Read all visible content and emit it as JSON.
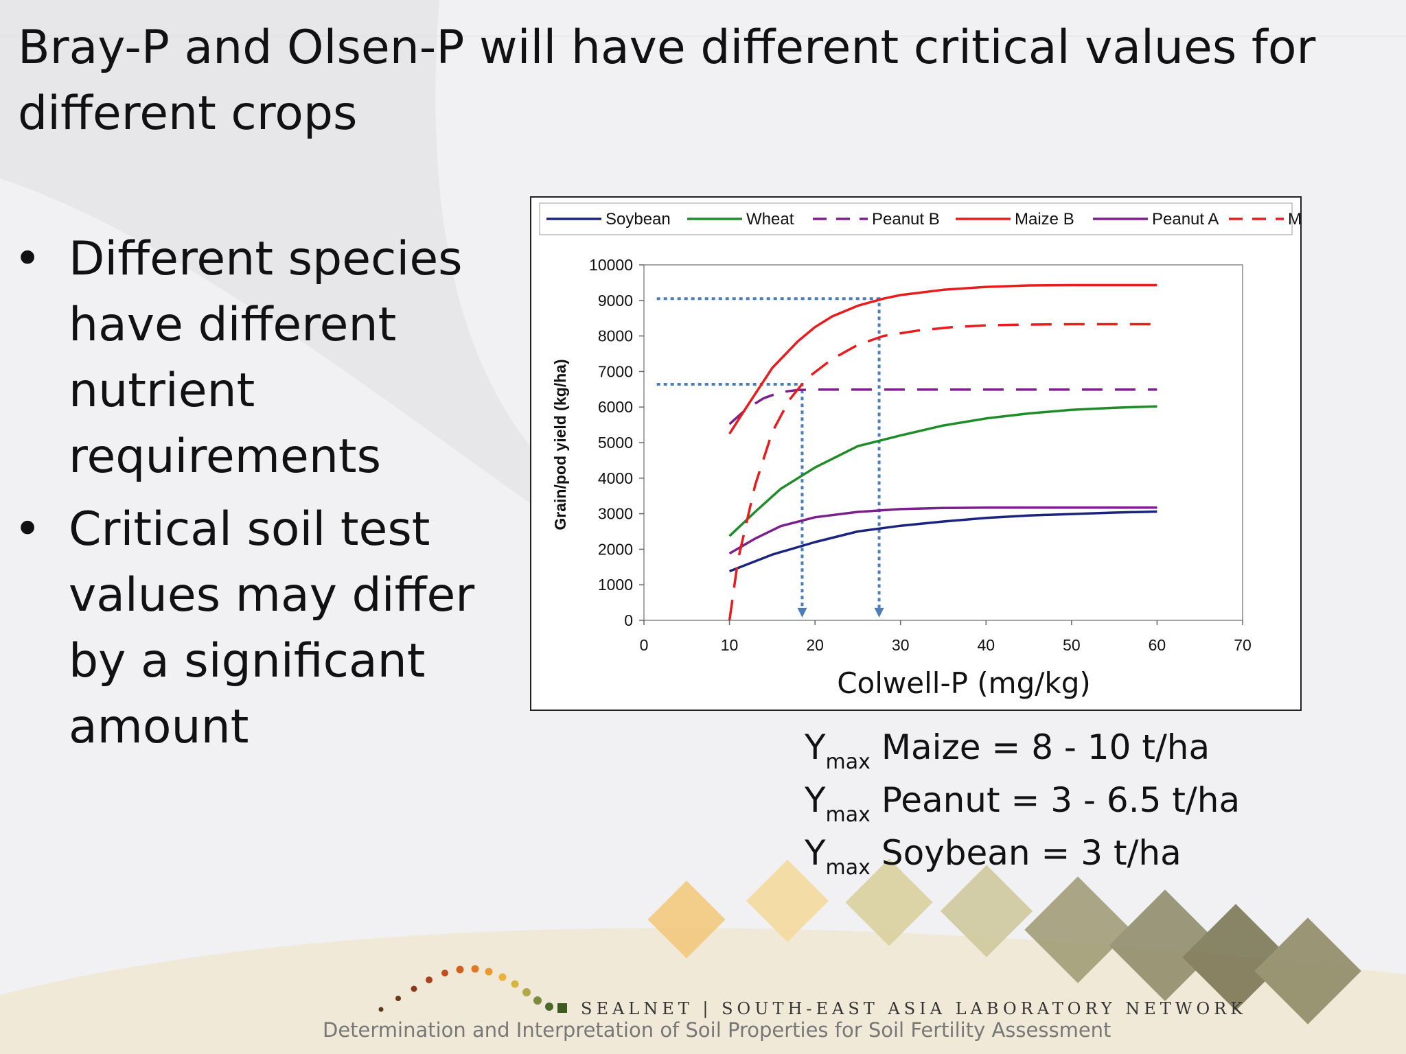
{
  "slide": {
    "title": "Bray-P and Olsen-P will have different critical values for different crops",
    "bullets": [
      "Different species have different nutrient requirements",
      "Critical soil test values may differ by a significant amount"
    ],
    "bullet_symbol": "•"
  },
  "ymax": [
    {
      "sym": "Y",
      "sub": "max",
      "text": "Maize = 8 - 10 t/ha"
    },
    {
      "sym": "Y",
      "sub": "max",
      "text": "Peanut = 3 - 6.5 t/ha"
    },
    {
      "sym": "Y",
      "sub": "max",
      "text": "Soybean = 3 t/ha"
    }
  ],
  "footer": {
    "network": "SEALNET | SOUTH-EAST ASIA LABORATORY NETWORK",
    "subtitle": "Determination and Interpretation of Soil Properties for Soil Fertility Assessment"
  },
  "colors": {
    "soybean": "#1a237e",
    "wheat": "#1e8c28",
    "peanut": "#7a1f8c",
    "maize": "#e81c1c",
    "guide": "#4a7ebb"
  },
  "chart_data": {
    "type": "line",
    "title": "",
    "xlabel": "Colwell-P (mg/kg)",
    "ylabel": "Grain/pod yield (kg/ha)",
    "xlim": [
      0,
      70
    ],
    "ylim": [
      0,
      10000
    ],
    "xticks": [
      0,
      10,
      20,
      30,
      40,
      50,
      60,
      70
    ],
    "yticks": [
      0,
      1000,
      2000,
      3000,
      4000,
      5000,
      6000,
      7000,
      8000,
      9000,
      10000
    ],
    "legend_position": "top",
    "series": [
      {
        "name": "Soybean",
        "style": "solid",
        "color_key": "soybean",
        "x": [
          10,
          15,
          20,
          25,
          30,
          35,
          40,
          45,
          50,
          55,
          60
        ],
        "y": [
          1380,
          1850,
          2200,
          2500,
          2660,
          2780,
          2880,
          2950,
          2990,
          3030,
          3060
        ]
      },
      {
        "name": "Wheat",
        "style": "solid",
        "color_key": "wheat",
        "x": [
          10,
          13,
          16,
          20,
          25,
          30,
          35,
          40,
          45,
          50,
          55,
          60
        ],
        "y": [
          2370,
          3050,
          3700,
          4300,
          4900,
          5200,
          5480,
          5680,
          5820,
          5920,
          5980,
          6020
        ]
      },
      {
        "name": "Peanut B",
        "style": "dashed",
        "color_key": "peanut",
        "x": [
          10,
          12,
          14,
          16,
          18,
          20,
          30,
          40,
          50,
          60
        ],
        "y": [
          5520,
          5950,
          6250,
          6420,
          6480,
          6490,
          6490,
          6490,
          6490,
          6490
        ]
      },
      {
        "name": "Maize B",
        "style": "solid",
        "color_key": "maize",
        "x": [
          10,
          12,
          15,
          18,
          20,
          22,
          25,
          28,
          30,
          35,
          40,
          45,
          50,
          60
        ],
        "y": [
          5250,
          6000,
          7100,
          7850,
          8250,
          8550,
          8850,
          9050,
          9150,
          9300,
          9380,
          9420,
          9430,
          9430
        ]
      },
      {
        "name": "Peanut A",
        "style": "solid",
        "color_key": "peanut",
        "x": [
          10,
          13,
          16,
          20,
          25,
          30,
          35,
          40,
          50,
          60
        ],
        "y": [
          1880,
          2300,
          2650,
          2900,
          3050,
          3130,
          3160,
          3170,
          3170,
          3170
        ]
      },
      {
        "name": "Maize A",
        "style": "dashed",
        "color_key": "maize",
        "x": [
          10,
          11,
          13,
          15,
          17,
          19,
          22,
          25,
          28,
          32,
          36,
          40,
          45,
          50,
          55,
          60
        ],
        "y": [
          0,
          1700,
          3800,
          5300,
          6200,
          6800,
          7350,
          7750,
          8000,
          8150,
          8250,
          8300,
          8320,
          8330,
          8330,
          8330
        ]
      }
    ],
    "guides": [
      {
        "x": 27.5,
        "y": 9050
      },
      {
        "x": 18.5,
        "y": 6640
      }
    ]
  }
}
